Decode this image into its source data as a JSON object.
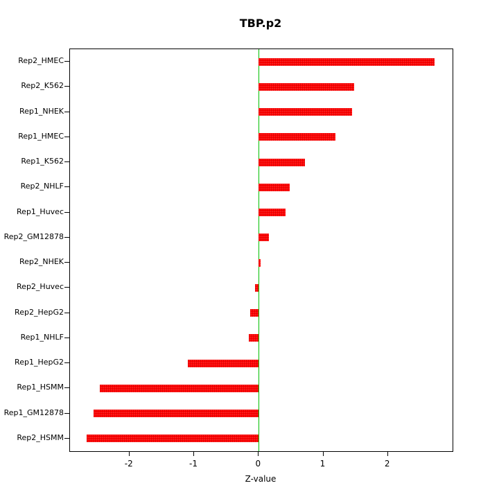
{
  "chart_data": {
    "type": "bar",
    "orientation": "horizontal",
    "title": "TBP.p2",
    "xlabel": "Z-value",
    "ylabel": "",
    "categories": [
      "Rep2_HMEC",
      "Rep2_K562",
      "Rep1_NHEK",
      "Rep1_HMEC",
      "Rep1_K562",
      "Rep2_NHLF",
      "Rep1_Huvec",
      "Rep2_GM12878",
      "Rep2_NHEK",
      "Rep2_Huvec",
      "Rep2_HepG2",
      "Rep1_NHLF",
      "Rep1_HepG2",
      "Rep1_HSMM",
      "Rep1_GM12878",
      "Rep2_HSMM"
    ],
    "values": [
      2.72,
      1.48,
      1.45,
      1.19,
      0.72,
      0.48,
      0.42,
      0.16,
      0.03,
      -0.06,
      -0.13,
      -0.15,
      -1.1,
      -2.46,
      -2.56,
      -2.66
    ],
    "xlim": [
      -2.92,
      3.0
    ],
    "xticks": [
      -2,
      -1,
      0,
      1,
      2
    ],
    "grid": false,
    "legend": "none",
    "bar_color": "#ff0000",
    "zero_line_color": "#00c000"
  }
}
